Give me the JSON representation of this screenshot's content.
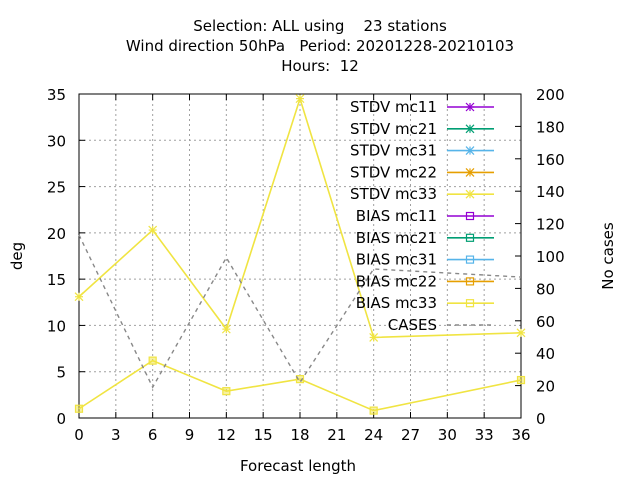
{
  "chart_data": {
    "type": "line",
    "title_lines": [
      "Selection: ALL using    23 stations",
      "Wind direction 50hPa   Period: 20201228-20210103",
      "Hours:  12"
    ],
    "xlabel": "Forecast length",
    "ylabel": "deg",
    "y2label": "No cases",
    "xlim": [
      0,
      36
    ],
    "ylim": [
      0,
      35
    ],
    "y2lim": [
      0,
      200
    ],
    "xticks": [
      0,
      3,
      6,
      9,
      12,
      15,
      18,
      21,
      24,
      27,
      30,
      33,
      36
    ],
    "yticks": [
      0,
      5,
      10,
      15,
      20,
      25,
      30,
      35
    ],
    "y2ticks": [
      0,
      20,
      40,
      60,
      80,
      100,
      120,
      140,
      160,
      180,
      200
    ],
    "grid": true,
    "legend_position": "top-right",
    "x": [
      0,
      6,
      12,
      18,
      24,
      36
    ],
    "series": [
      {
        "name": "STDV mc11",
        "color": "#9400d3",
        "marker": "star",
        "axis": "y1",
        "values": null
      },
      {
        "name": "STDV mc21",
        "color": "#009e73",
        "marker": "star",
        "axis": "y1",
        "values": null
      },
      {
        "name": "STDV mc31",
        "color": "#56b4e9",
        "marker": "star",
        "axis": "y1",
        "values": null
      },
      {
        "name": "STDV mc22",
        "color": "#e69f00",
        "marker": "star",
        "axis": "y1",
        "values": null
      },
      {
        "name": "STDV mc33",
        "color": "#f0e442",
        "marker": "star",
        "axis": "y1",
        "values": [
          13.1,
          20.3,
          9.6,
          34.5,
          8.7,
          9.2
        ]
      },
      {
        "name": "BIAS mc11",
        "color": "#9400d3",
        "marker": "square",
        "axis": "y1",
        "values": null
      },
      {
        "name": "BIAS mc21",
        "color": "#009e73",
        "marker": "square",
        "axis": "y1",
        "values": null
      },
      {
        "name": "BIAS mc31",
        "color": "#56b4e9",
        "marker": "square",
        "axis": "y1",
        "values": null
      },
      {
        "name": "BIAS mc22",
        "color": "#e69f00",
        "marker": "square",
        "axis": "y1",
        "values": null
      },
      {
        "name": "BIAS mc33",
        "color": "#f0e442",
        "marker": "square",
        "axis": "y1",
        "values": [
          1.0,
          6.2,
          2.9,
          4.2,
          0.8,
          4.1
        ]
      },
      {
        "name": "CASES",
        "color": "#888888",
        "marker": "none",
        "dashed": true,
        "axis": "y2",
        "values": [
          113,
          19,
          99,
          22,
          92,
          87
        ]
      }
    ]
  }
}
